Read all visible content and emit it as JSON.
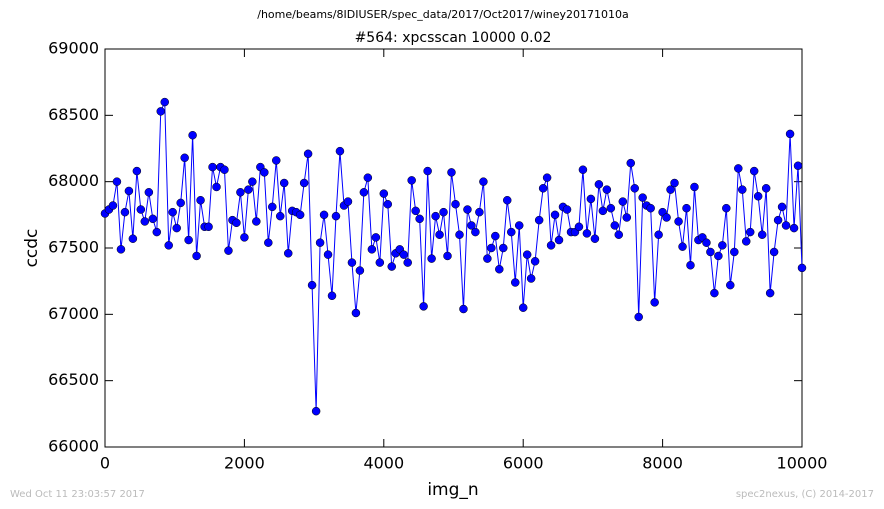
{
  "chart_data": {
    "type": "line",
    "suptitle": "/home/beams/8IDIUSER/spec_data/2017/Oct2017/winey20171010a",
    "title": "#564: xpcsscan 10000 0.02",
    "xlabel": "img_n",
    "ylabel": "ccdc",
    "footer_left": "Wed Oct 11 23:03:57 2017",
    "footer_right": "spec2nexus, (C) 2014-2017",
    "xlim": [
      0,
      10000
    ],
    "xticks": [
      0,
      2000,
      4000,
      6000,
      8000,
      10000
    ],
    "ylim": [
      66000,
      69000
    ],
    "yticks": [
      66000,
      66500,
      67000,
      67500,
      68000,
      68500,
      69000
    ],
    "grid": false,
    "x": [
      0,
      57,
      114,
      171,
      229,
      286,
      343,
      400,
      457,
      514,
      571,
      629,
      686,
      743,
      800,
      857,
      914,
      971,
      1029,
      1086,
      1143,
      1200,
      1257,
      1314,
      1371,
      1429,
      1486,
      1543,
      1600,
      1657,
      1714,
      1771,
      1829,
      1886,
      1943,
      2000,
      2057,
      2114,
      2171,
      2229,
      2286,
      2343,
      2400,
      2457,
      2514,
      2571,
      2629,
      2686,
      2743,
      2800,
      2857,
      2914,
      2971,
      3029,
      3086,
      3143,
      3200,
      3257,
      3314,
      3371,
      3429,
      3486,
      3543,
      3600,
      3657,
      3714,
      3771,
      3829,
      3886,
      3943,
      4000,
      4057,
      4114,
      4171,
      4229,
      4286,
      4343,
      4400,
      4457,
      4514,
      4571,
      4629,
      4686,
      4743,
      4800,
      4857,
      4914,
      4971,
      5029,
      5086,
      5143,
      5200,
      5257,
      5314,
      5371,
      5429,
      5486,
      5543,
      5600,
      5657,
      5714,
      5771,
      5829,
      5886,
      5943,
      6000,
      6057,
      6114,
      6171,
      6229,
      6286,
      6343,
      6400,
      6457,
      6514,
      6571,
      6629,
      6686,
      6743,
      6800,
      6857,
      6914,
      6971,
      7029,
      7086,
      7143,
      7200,
      7257,
      7314,
      7371,
      7429,
      7486,
      7543,
      7600,
      7657,
      7714,
      7771,
      7829,
      7886,
      7943,
      8000,
      8057,
      8114,
      8171,
      8229,
      8286,
      8343,
      8400,
      8457,
      8514,
      8571,
      8629,
      8686,
      8743,
      8800,
      8857,
      8914,
      8971,
      9029,
      9086,
      9143,
      9200,
      9257,
      9314,
      9371,
      9429,
      9486,
      9543,
      9600,
      9657,
      9714,
      9771,
      9829,
      9886,
      9943,
      10000
    ],
    "series": [
      {
        "color": "#0000ff",
        "values": [
          67760,
          67790,
          67820,
          68000,
          67490,
          67770,
          67930,
          67570,
          68080,
          67790,
          67700,
          67920,
          67720,
          67620,
          68530,
          68600,
          67520,
          67770,
          67650,
          67840,
          68180,
          67560,
          68350,
          67440,
          67860,
          67660,
          67660,
          68110,
          67960,
          68110,
          68090,
          67480,
          67710,
          67690,
          67920,
          67580,
          67940,
          68000,
          67700,
          68110,
          68070,
          67540,
          67810,
          68160,
          67740,
          67990,
          67460,
          67780,
          67770,
          67750,
          67990,
          68210,
          67220,
          66270,
          67540,
          67750,
          67450,
          67140,
          67740,
          68230,
          67820,
          67850,
          67390,
          67010,
          67330,
          67920,
          68030,
          67490,
          67580,
          67390,
          67910,
          67830,
          67360,
          67460,
          67490,
          67450,
          67390,
          68010,
          67780,
          67720,
          67060,
          68080,
          67420,
          67740,
          67600,
          67770,
          67440,
          68070,
          67830,
          67600,
          67040,
          67790,
          67670,
          67620,
          67770,
          68000,
          67420,
          67500,
          67590,
          67340,
          67500,
          67860,
          67620,
          67240,
          67670,
          67050,
          67450,
          67270,
          67400,
          67710,
          67950,
          68030,
          67520,
          67750,
          67560,
          67810,
          67790,
          67620,
          67620,
          67660,
          68090,
          67610,
          67870,
          67570,
          67980,
          67780,
          67940,
          67800,
          67670,
          67600,
          67850,
          67730,
          68140,
          67950,
          66980,
          67880,
          67820,
          67800,
          67090,
          67600,
          67770,
          67730,
          67940,
          67990,
          67700,
          67510,
          67800,
          67370,
          67960,
          67560,
          67580,
          67540,
          67470,
          67160,
          67440,
          67520,
          67800,
          67220,
          67470,
          68100,
          67940,
          67550,
          67620,
          68080,
          67890,
          67600,
          67950,
          67160,
          67470,
          67710,
          67810,
          67670,
          68360,
          67650,
          68120,
          67350
        ]
      }
    ]
  }
}
